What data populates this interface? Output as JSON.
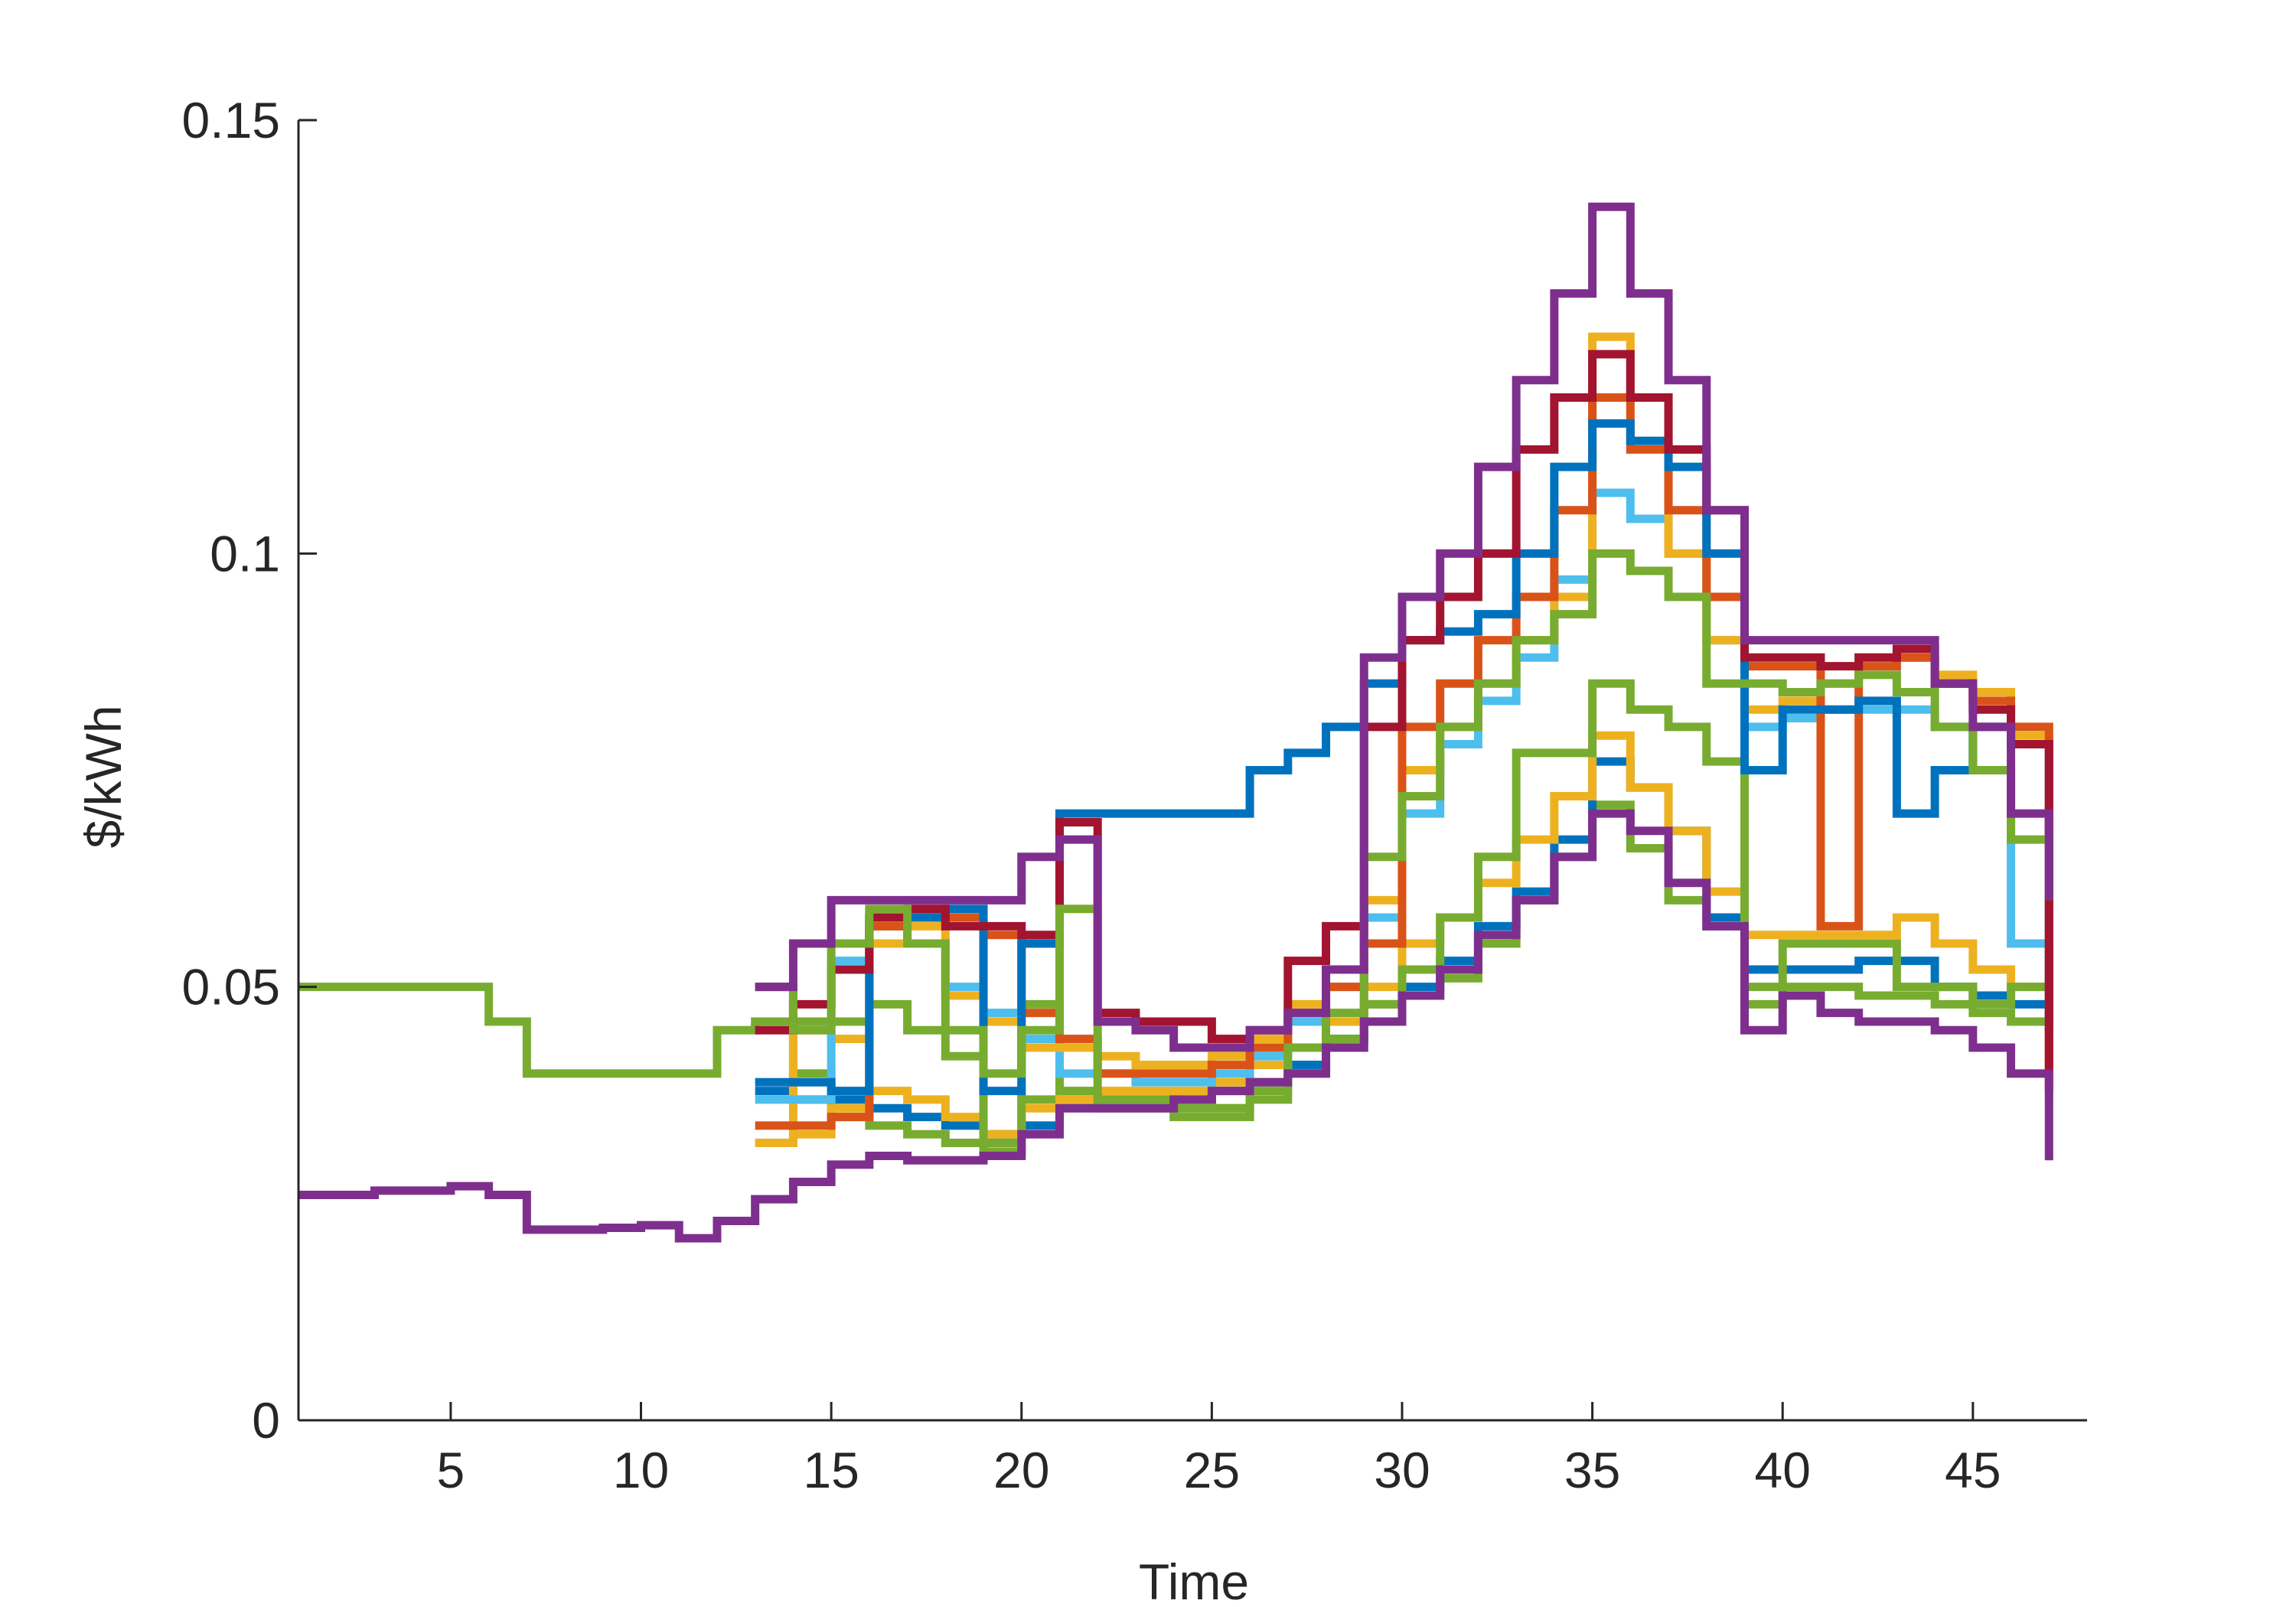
{
  "chart_data": {
    "type": "stairs",
    "xlabel": "Time",
    "ylabel": "$/kWh",
    "xlim": [
      1,
      48
    ],
    "ylim": [
      0,
      0.15
    ],
    "xticks": [
      5,
      10,
      15,
      20,
      25,
      30,
      35,
      40,
      45
    ],
    "yticks": [
      0,
      0.05,
      0.1,
      0.15
    ],
    "x": [
      1,
      2,
      3,
      4,
      5,
      6,
      7,
      8,
      9,
      10,
      11,
      12,
      13,
      14,
      15,
      16,
      17,
      18,
      19,
      20,
      21,
      22,
      23,
      24,
      25,
      26,
      27,
      28,
      29,
      30,
      31,
      32,
      33,
      34,
      35,
      36,
      37,
      38,
      39,
      40,
      41,
      42,
      43,
      44,
      45,
      46,
      47
    ],
    "series": [
      {
        "color": "#77AC30",
        "values": [
          0.05,
          0.05,
          0.05,
          0.05,
          0.05,
          0.046,
          0.04,
          0.04,
          0.04,
          0.04,
          0.04,
          0.045,
          0.046,
          0.04,
          0.035,
          0.034,
          0.033,
          0.032,
          0.031,
          0.037,
          0.036,
          0.036,
          0.036,
          0.035,
          0.035,
          0.038,
          0.041,
          0.044,
          0.048,
          0.049,
          0.051,
          0.055,
          0.06,
          0.065,
          0.071,
          0.066,
          0.06,
          0.057,
          0.05,
          0.05,
          0.05,
          0.049,
          0.049,
          0.048,
          0.047,
          0.046,
          0.045
        ]
      },
      {
        "color": "#0072BD",
        "values": [
          null,
          null,
          null,
          null,
          null,
          null,
          null,
          null,
          null,
          null,
          null,
          null,
          0.038,
          0.037,
          0.037,
          0.036,
          0.035,
          0.034,
          0.033,
          0.034,
          0.037,
          0.037,
          0.037,
          0.037,
          0.038,
          0.039,
          0.041,
          0.044,
          0.046,
          0.05,
          0.053,
          0.057,
          0.061,
          0.067,
          0.076,
          0.073,
          0.068,
          0.058,
          0.052,
          0.052,
          0.052,
          0.053,
          0.053,
          0.05,
          0.049,
          0.048,
          0.045
        ]
      },
      {
        "color": "#EDB120",
        "values": [
          null,
          null,
          null,
          null,
          null,
          null,
          null,
          null,
          null,
          null,
          null,
          null,
          0.032,
          0.045,
          0.044,
          0.038,
          0.037,
          0.035,
          0.033,
          0.036,
          0.037,
          0.038,
          0.038,
          0.038,
          0.039,
          0.041,
          0.043,
          0.046,
          0.05,
          0.055,
          0.058,
          0.062,
          0.067,
          0.072,
          0.079,
          0.073,
          0.068,
          0.061,
          0.056,
          0.056,
          0.056,
          0.056,
          0.058,
          0.055,
          0.052,
          0.05,
          0.049
        ]
      },
      {
        "color": "#77AC30",
        "values": [
          null,
          null,
          null,
          null,
          null,
          null,
          null,
          null,
          null,
          null,
          null,
          null,
          0.05,
          0.046,
          0.046,
          0.048,
          0.045,
          0.042,
          0.032,
          0.048,
          0.038,
          0.037,
          0.037,
          0.036,
          0.036,
          0.037,
          0.04,
          0.044,
          0.048,
          0.052,
          0.058,
          0.065,
          0.077,
          0.077,
          0.085,
          0.082,
          0.08,
          0.076,
          0.048,
          0.055,
          0.055,
          0.055,
          0.05,
          0.05,
          0.048,
          0.05,
          0.054
        ]
      },
      {
        "color": "#4DBEEE",
        "values": [
          null,
          null,
          null,
          null,
          null,
          null,
          null,
          null,
          null,
          null,
          null,
          null,
          0.037,
          0.037,
          0.053,
          0.057,
          0.055,
          0.05,
          0.047,
          0.044,
          0.04,
          0.04,
          0.039,
          0.039,
          0.04,
          0.042,
          0.046,
          0.05,
          0.058,
          0.07,
          0.078,
          0.083,
          0.088,
          0.097,
          0.107,
          0.104,
          0.1,
          0.09,
          0.08,
          0.081,
          0.082,
          0.082,
          0.082,
          0.08,
          0.075,
          0.055,
          0.043
        ]
      },
      {
        "color": "#EDB120",
        "values": [
          null,
          null,
          null,
          null,
          null,
          null,
          null,
          null,
          null,
          null,
          null,
          null,
          0.032,
          0.033,
          0.036,
          0.055,
          0.057,
          0.049,
          0.046,
          0.043,
          0.043,
          0.042,
          0.041,
          0.041,
          0.042,
          0.044,
          0.048,
          0.052,
          0.06,
          0.075,
          0.08,
          0.085,
          0.09,
          0.095,
          0.125,
          0.118,
          0.1,
          0.09,
          0.082,
          0.083,
          0.085,
          0.088,
          0.088,
          0.086,
          0.084,
          0.079,
          0.037
        ]
      },
      {
        "color": "#D95319",
        "values": [
          null,
          null,
          null,
          null,
          null,
          null,
          null,
          null,
          null,
          null,
          null,
          null,
          0.034,
          0.034,
          0.035,
          0.057,
          0.059,
          0.058,
          0.056,
          0.047,
          0.044,
          0.04,
          0.04,
          0.04,
          0.041,
          0.043,
          0.047,
          0.05,
          0.055,
          0.08,
          0.085,
          0.09,
          0.095,
          0.105,
          0.118,
          0.112,
          0.105,
          0.095,
          0.087,
          0.087,
          0.057,
          0.087,
          0.088,
          0.085,
          0.083,
          0.08,
          0.04
        ]
      },
      {
        "color": "#0072BD",
        "values": [
          null,
          null,
          null,
          null,
          null,
          null,
          null,
          null,
          null,
          null,
          null,
          null,
          0.039,
          0.039,
          0.038,
          0.058,
          0.058,
          0.059,
          0.038,
          0.055,
          0.07,
          0.07,
          0.07,
          0.07,
          0.07,
          0.075,
          0.077,
          0.08,
          0.085,
          0.09,
          0.091,
          0.093,
          0.1,
          0.11,
          0.115,
          0.113,
          0.11,
          0.1,
          0.075,
          0.082,
          0.082,
          0.083,
          0.07,
          0.075,
          0.08,
          0.078,
          0.045
        ]
      },
      {
        "color": "#A2142F",
        "values": [
          null,
          null,
          null,
          null,
          null,
          null,
          null,
          null,
          null,
          null,
          null,
          null,
          0.045,
          0.048,
          0.052,
          0.058,
          0.059,
          0.057,
          0.057,
          0.056,
          0.069,
          0.047,
          0.046,
          0.046,
          0.044,
          0.045,
          0.053,
          0.057,
          0.08,
          0.09,
          0.095,
          0.1,
          0.112,
          0.118,
          0.123,
          0.118,
          0.112,
          0.105,
          0.088,
          0.088,
          0.087,
          0.088,
          0.089,
          0.085,
          0.082,
          0.078,
          0.038
        ]
      },
      {
        "color": "#77AC30",
        "values": [
          null,
          null,
          null,
          null,
          null,
          null,
          null,
          null,
          null,
          null,
          null,
          null,
          0.05,
          0.045,
          0.055,
          0.059,
          0.055,
          0.045,
          0.04,
          0.045,
          0.059,
          0.036,
          0.036,
          0.036,
          0.036,
          0.039,
          0.043,
          0.047,
          0.065,
          0.072,
          0.08,
          0.085,
          0.09,
          0.093,
          0.1,
          0.098,
          0.095,
          0.085,
          0.085,
          0.084,
          0.085,
          0.086,
          0.084,
          0.08,
          0.075,
          0.067,
          0.06
        ]
      },
      {
        "color": "#7E2F8E",
        "values": [
          0.026,
          0.026,
          0.0265,
          0.0265,
          0.027,
          0.026,
          0.022,
          0.022,
          0.0222,
          0.0225,
          0.021,
          0.023,
          0.0255,
          0.0275,
          0.0295,
          0.0305,
          0.03,
          0.03,
          0.0305,
          0.033,
          0.036,
          0.036,
          0.036,
          0.037,
          0.038,
          0.039,
          0.04,
          0.043,
          0.046,
          0.049,
          0.052,
          0.056,
          0.06,
          0.065,
          0.07,
          0.068,
          0.062,
          0.057,
          0.045,
          0.049,
          0.047,
          0.046,
          0.046,
          0.045,
          0.043,
          0.04,
          0.03
        ]
      },
      {
        "color": "#7E2F8E",
        "values": [
          null,
          null,
          null,
          null,
          null,
          null,
          null,
          null,
          null,
          null,
          null,
          null,
          0.05,
          0.055,
          0.06,
          0.06,
          0.06,
          0.06,
          0.06,
          0.065,
          0.067,
          0.046,
          0.045,
          0.043,
          0.043,
          0.045,
          0.047,
          0.052,
          0.088,
          0.095,
          0.1,
          0.11,
          0.12,
          0.13,
          0.14,
          0.13,
          0.12,
          0.105,
          0.09,
          0.09,
          0.09,
          0.09,
          0.09,
          0.085,
          0.08,
          0.07,
          0.06
        ]
      }
    ]
  }
}
